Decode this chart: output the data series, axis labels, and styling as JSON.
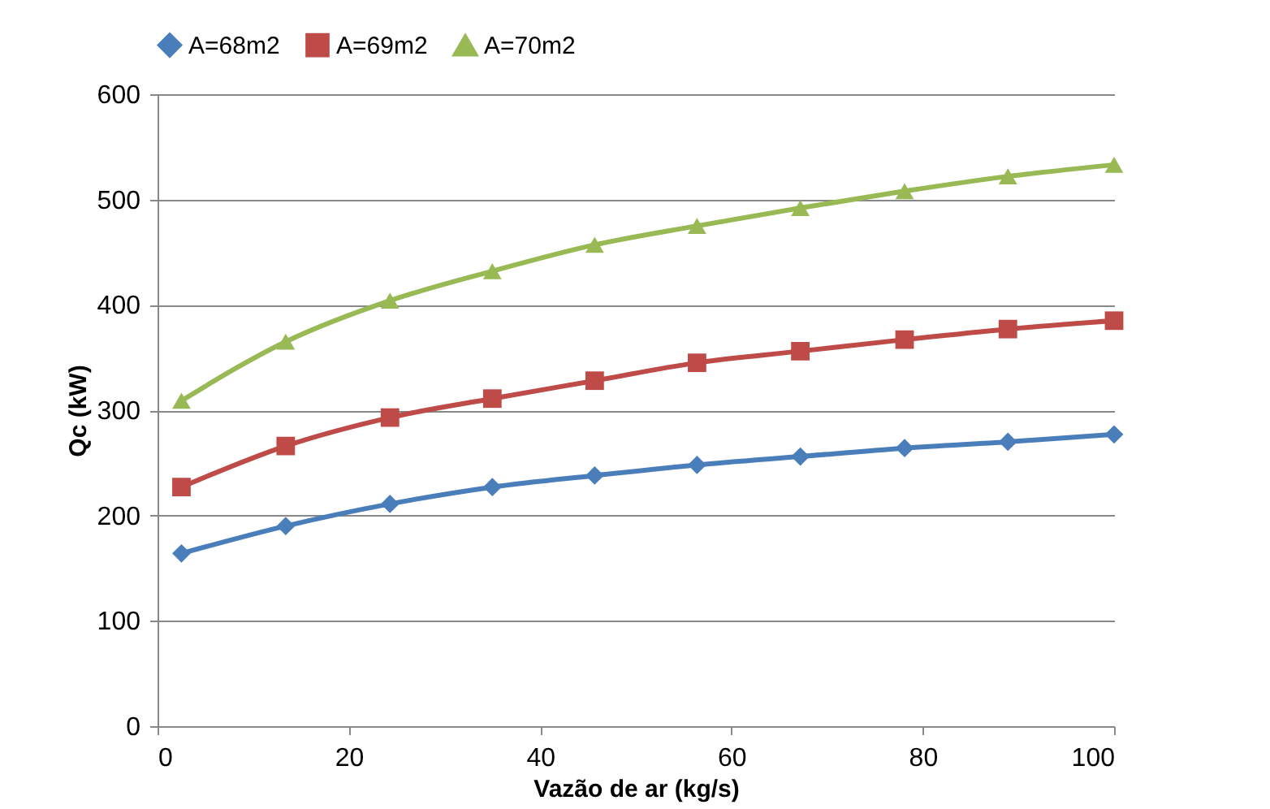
{
  "chart_data": {
    "type": "line",
    "xlabel": "Vazão de ar (kg/s)",
    "ylabel": "Qc (kW)",
    "x": [
      2.5,
      13.4,
      24.3,
      35,
      45.7,
      56.4,
      67.2,
      78.1,
      88.9,
      100
    ],
    "series": [
      {
        "name": "A=68m2",
        "color": "#4a7ebb",
        "marker": "diamond",
        "values": [
          164,
          190,
          211,
          227,
          238,
          248,
          256,
          264,
          270,
          277
        ]
      },
      {
        "name": "A=69m2",
        "color": "#be4b48",
        "marker": "square",
        "values": [
          227,
          266,
          293,
          311,
          328,
          345,
          356,
          367,
          377,
          385
        ]
      },
      {
        "name": "A=70m2",
        "color": "#98b954",
        "marker": "triangle",
        "values": [
          309,
          365,
          404,
          432,
          457,
          475,
          492,
          508,
          522,
          533
        ]
      }
    ],
    "xlim": [
      0,
      100
    ],
    "xticks": [
      0,
      20,
      40,
      60,
      80,
      100
    ],
    "ylim": [
      0,
      600
    ],
    "yticks": [
      0,
      100,
      200,
      300,
      400,
      500,
      600
    ],
    "grid": "y",
    "legend": "top",
    "line_style": "solid"
  }
}
